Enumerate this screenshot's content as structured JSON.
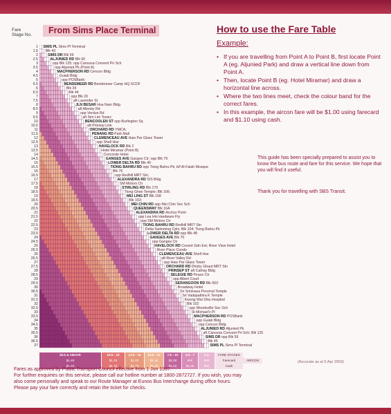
{
  "header": {
    "fare_stage_label": "Fare Stage No.",
    "terminal_title": "From Sims Place Terminal"
  },
  "howto": {
    "title": "How to use the Fare Table",
    "example_label": "Example:",
    "bullets": [
      "If you are travelling from Point A to Point B, first locate Point A (eg. Aljunied Park) and draw a vertical line down from Point A.",
      "Then, locate Point B (eg. Hotel Miramar) and draw a horizontal line across.",
      "Where the two lines meet, check the colour band for the correct fares.",
      "In this example, the aircon fare will be $1.00 using farecard and $1.10 using cash."
    ],
    "note": "This guide has been specially prepared to assist you to know the bus route and fare for this service. We hope that you will find it useful.",
    "thanks": "Thank you for travelling with SBS Transit."
  },
  "stages": [
    "1",
    "1.5",
    "2",
    "2.5",
    "3",
    "3.5",
    "4",
    "4.5",
    "5",
    "5.5",
    "6",
    "6.5",
    "7",
    "7.5",
    "8",
    "8.5",
    "9",
    "9.5",
    "10",
    "10.5",
    "11",
    "11.5",
    "12",
    "12.5",
    "13",
    "13.5",
    "14",
    "14.5",
    "15",
    "15.5",
    "16",
    "16.5",
    "17",
    "17.5",
    "18",
    "18.5",
    "19",
    "19.5",
    "20",
    "20.5",
    "21",
    "21.5",
    "22",
    "22.5",
    "23",
    "23.5",
    "24",
    "24.5",
    "25",
    "25.5",
    "26",
    "26.5",
    "27",
    "27.5",
    "28",
    "28.5",
    "29",
    "29.5",
    "30",
    "30.5",
    "31",
    "31.5",
    "32",
    "32.5",
    "33",
    "33.5",
    "34",
    "34.5",
    "35",
    "35.5",
    "36",
    "36.5",
    "37"
  ],
  "stops_top": [
    {
      "bold": "SIMS PL",
      "sub": "Sims Pl Terminal"
    },
    {
      "bold": "",
      "sub": "Blk 43"
    },
    {
      "bold": "SIMS DR",
      "sub": "Blk 59"
    },
    {
      "bold": "ALJUNIED RD",
      "sub": "Blk 60"
    },
    {
      "bold": "",
      "sub": "opp Blk 125; opp Canossa Convent Pri Sch"
    },
    {
      "bold": "",
      "sub": "opp Aljunied Pk (Point A)"
    },
    {
      "bold": "MACPHERSON RD",
      "sub": "Cencon Bldg"
    },
    {
      "bold": "",
      "sub": "Guiab Bldg"
    },
    {
      "bold": "",
      "sub": "opp POSBank;"
    },
    {
      "bold": "BENDEMEER RD",
      "sub": "Bendemeer Camp HQ SCDF"
    },
    {
      "bold": "",
      "sub": "Blk 34"
    },
    {
      "bold": "",
      "sub": "Blk 44"
    },
    {
      "bold": "",
      "sub": "opp Blk 20"
    },
    {
      "bold": "",
      "sub": "aft Lavender St"
    },
    {
      "bold": "JLN BESAR",
      "sub": "Hoa Nam Bldg"
    },
    {
      "bold": "",
      "sub": "aft Allenby Rd"
    },
    {
      "bold": "",
      "sub": "opp Verdun Rd"
    },
    {
      "bold": "",
      "sub": "aft Sim Lim Tower;"
    },
    {
      "bold": "BENCOOLEN ST",
      "sub": "opp Burlington Sq"
    },
    {
      "bold": "",
      "sub": "aft Prinsep Link"
    },
    {
      "bold": "ORCHARD RD",
      "sub": "YMCA;"
    },
    {
      "bold": "PENANG RD",
      "sub": "Park Mall"
    },
    {
      "bold": "CLEMENCEAU AVE",
      "sub": "Haw Par Glass Tower"
    },
    {
      "bold": "",
      "sub": "opp Shell Hse"
    },
    {
      "bold": "HAVELOCK RD",
      "sub": "Blk 2"
    },
    {
      "bold": "",
      "sub": "Hotel Miramar (Point B)"
    },
    {
      "bold": "",
      "sub": "Concorde Hotel"
    },
    {
      "bold": "GANGES AVE",
      "sub": "Ganges Ctr; opp Blk 79"
    },
    {
      "bold": "LOWER DELTA RD",
      "sub": "Blk 40"
    },
    {
      "bold": "TIONG BAHRU RD",
      "sub": "opp Tiong Bahru Pk; b/f Al-Falah Mosque"
    },
    {
      "bold": "",
      "sub": "Blk 76"
    },
    {
      "bold": "",
      "sub": "opp Redhill MRT Stn;"
    },
    {
      "bold": "ALEXANDRA RD",
      "sub": "SIS Bldg"
    },
    {
      "bold": "",
      "sub": "SM Motors Ctr"
    },
    {
      "bold": "STIRLING RD",
      "sub": "Blk 170"
    },
    {
      "bold": "",
      "sub": "Tiong Ghee Temple; Blk 166;"
    },
    {
      "bold": "MEI LING ST",
      "sub": "Blk 158"
    },
    {
      "bold": "",
      "sub": "Blk 153;"
    },
    {
      "bold": "MEI CHIN RD",
      "sub": "opp Mei Chin Sec Sch"
    },
    {
      "bold": "QUEENSWAY",
      "sub": "Blk 16A"
    },
    {
      "bold": "ALEXANDRA RD",
      "sub": "Anchor Point"
    },
    {
      "bold": "",
      "sub": "opp Lea Hin Hardware Fty"
    },
    {
      "bold": "",
      "sub": "opp SM Motors Ctr"
    }
  ],
  "stops_bottom": [
    {
      "bold": "TIONG BAHRU RD",
      "sub": "Redhill MRT Stn"
    },
    {
      "bold": "",
      "sub": "Delta Swimming Cplx; Blk 104; Tiong Bahru Pk"
    },
    {
      "bold": "LOWER DELTA RD",
      "sub": "opp Blk 48"
    },
    {
      "bold": "GANGES AVE",
      "sub": "Blk 70"
    },
    {
      "bold": "",
      "sub": "opp Ganges Ctr"
    },
    {
      "bold": "HAVELOCK RD",
      "sub": "Covent Gdn Est; River View Hotel"
    },
    {
      "bold": "",
      "sub": "River Place Condo"
    },
    {
      "bold": "CLEMENCEAU AVE",
      "sub": "Shell Hse"
    },
    {
      "bold": "",
      "sub": "aft River Valley Rd"
    },
    {
      "bold": "",
      "sub": "opp Haw Par Glass Tower"
    },
    {
      "bold": "ORCHARD RD",
      "sub": "Dhoby Ghaut MRT Stn"
    },
    {
      "bold": "PRINSEP ST",
      "sub": "aft Cathay Bldg"
    },
    {
      "bold": "SELEGIE RD",
      "sub": "Peace Ctr"
    },
    {
      "bold": "",
      "sub": "opp Albert Court"
    },
    {
      "bold": "SERANGOON RD",
      "sub": "Blk 663"
    },
    {
      "bold": "",
      "sub": "Broadway Hotel"
    },
    {
      "bold": "",
      "sub": "Sri Srinivasa Perumal Temple"
    },
    {
      "bold": "",
      "sub": "Sri Vadapathira K Temple"
    },
    {
      "bold": "",
      "sub": "Kwong Wai Shiu Hospital"
    },
    {
      "bold": "",
      "sub": "Blk 102"
    },
    {
      "bold": "",
      "sub": "opp Woodsville Sec Sch"
    },
    {
      "bold": "",
      "sub": "St Michael's Pl"
    },
    {
      "bold": "MACPHERSON RD",
      "sub": "POSBank"
    },
    {
      "bold": "",
      "sub": "opp Guiab Bldg"
    },
    {
      "bold": "",
      "sub": "opp Cencon Bldg"
    },
    {
      "bold": "ALJUNIED RD",
      "sub": "Aljunied Pk"
    },
    {
      "bold": "",
      "sub": "aft Canossa Convent Pri Sch; Blk 125"
    },
    {
      "bold": "SIMS DR",
      "sub": "opp Blk 59"
    },
    {
      "bold": "",
      "sub": "Blk 45"
    },
    {
      "bold": "SIMS PL",
      "sub": "Sims Pl Terminal"
    }
  ],
  "legend": {
    "bands": [
      {
        "label": "29.5 & ABOVE",
        "card": "$1.40",
        "cash": "$1.40",
        "color": "#b0508a"
      },
      {
        "label": "16.5 - 23",
        "card": "$1.30",
        "cash": "$1.40",
        "color": "#e27575"
      },
      {
        "label": "13.5 - 16",
        "card": "$1.20",
        "cash": "$1.30",
        "color": "#e89a7d"
      },
      {
        "label": "10.5 - 13",
        "card": "$1.10",
        "cash": "$1.20",
        "color": "#efb593"
      },
      {
        "label": "7.5 - 10",
        "card": "$1.00",
        "cash": "$1.10",
        "color": "#c4679f"
      },
      {
        "label": "4.5 - 7",
        "card": "90¢",
        "cash": "$1.00",
        "color": "#d98db8"
      },
      {
        "label": "4 & BELOW",
        "card": "80¢",
        "cash": "90¢",
        "color": "#e9b6d2"
      }
    ],
    "fare_stages_label": "FARE STAGES",
    "farecard_label": "Farecard",
    "cash_label": "Cash",
    "aircon_label": "AIRCON"
  },
  "accurate": "(Accurate as at 5 Apr 2003)",
  "footer": [
    "Fares as approved by Public Transport Council effective from 1 Jun 1997.",
    "For further enquiries on this service, please call our hotline number at 1800-2872727.  If you wish, you may",
    "also come personally and speak to our Route Manager at Eunos Bus Interchange during office hours.",
    "Please pay your fare correctly and retain the ticket for checks."
  ],
  "colors": {
    "maroon": "#8e1737",
    "band_outer": "#8d2e72",
    "band_a": "#b0508a",
    "band_b": "#e27575",
    "band_c": "#e89a7d",
    "band_d": "#efb593",
    "band_e": "#c4679f",
    "band_f": "#d98db8",
    "band_g": "#e9b6d2"
  }
}
